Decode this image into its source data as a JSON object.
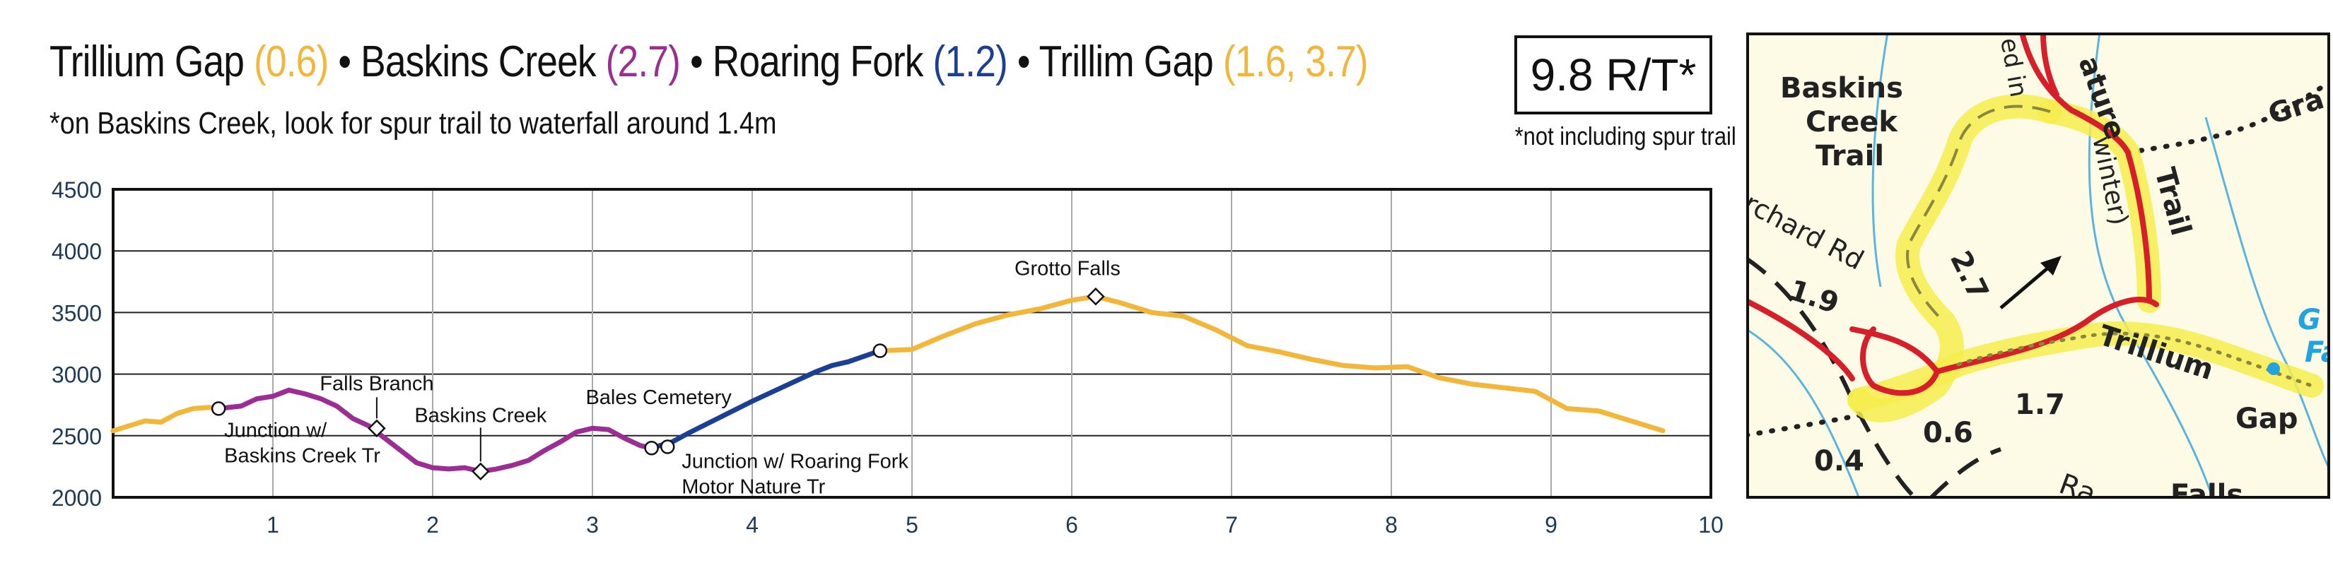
{
  "header": {
    "segments": [
      {
        "name": "Trillium Gap",
        "miles": "(0.6)",
        "color": "#f2b63a"
      },
      {
        "name": "Baskins Creek",
        "miles": "(2.7)",
        "color": "#9b2d93"
      },
      {
        "name": "Roaring Fork",
        "miles": "(1.2)",
        "color": "#1c3f94"
      },
      {
        "name": "Trillim Gap",
        "miles": "(1.6, 3.7)",
        "color": "#f2b63a"
      }
    ],
    "separator": "•",
    "subtitle": "*on Baskins Creek, look for spur trail to waterfall around 1.4m",
    "round_trip": "9.8 R/T*",
    "round_trip_note": "*not including spur trail"
  },
  "chart_data": {
    "type": "line",
    "xlim": [
      0,
      10
    ],
    "ylim": [
      2000,
      4500
    ],
    "x_ticks": [
      1,
      2,
      3,
      4,
      5,
      6,
      7,
      8,
      9,
      10
    ],
    "y_ticks": [
      2000,
      2500,
      3000,
      3500,
      4000,
      4500
    ],
    "grid": true,
    "series": [
      {
        "color": "#f2b63a",
        "x": [
          0,
          0.1,
          0.2,
          0.3,
          0.4,
          0.5,
          0.6,
          0.66
        ],
        "y": [
          2540,
          2580,
          2620,
          2610,
          2680,
          2720,
          2730,
          2720
        ]
      },
      {
        "color": "#9b2d93",
        "x": [
          0.66,
          0.8,
          0.9,
          1.0,
          1.1,
          1.2,
          1.3,
          1.4,
          1.5,
          1.6,
          1.7,
          1.8,
          1.9,
          2.0,
          2.1,
          2.2,
          2.3,
          2.4,
          2.5,
          2.6,
          2.7,
          2.8,
          2.9,
          3.0,
          3.1,
          3.2,
          3.3,
          3.37
        ],
        "y": [
          2720,
          2740,
          2800,
          2820,
          2870,
          2840,
          2800,
          2740,
          2640,
          2580,
          2480,
          2380,
          2280,
          2240,
          2230,
          2240,
          2210,
          2230,
          2260,
          2300,
          2380,
          2450,
          2530,
          2560,
          2550,
          2480,
          2420,
          2400
        ]
      },
      {
        "color": "#1c3f94",
        "x": [
          3.37,
          3.5,
          3.6,
          3.8,
          4.0,
          4.2,
          4.4,
          4.5,
          4.6,
          4.8
        ],
        "y": [
          2400,
          2450,
          2520,
          2650,
          2780,
          2900,
          3020,
          3070,
          3100,
          3190
        ]
      },
      {
        "color": "#f2b63a",
        "x": [
          4.8,
          5.0,
          5.2,
          5.4,
          5.6,
          5.8,
          6.0,
          6.15,
          6.3,
          6.5,
          6.7,
          6.9,
          7.1,
          7.3,
          7.5,
          7.7,
          7.9,
          8.1,
          8.3,
          8.5,
          8.7,
          8.9,
          9.1,
          9.3,
          9.5,
          9.7
        ],
        "y": [
          3190,
          3200,
          3310,
          3410,
          3480,
          3530,
          3600,
          3630,
          3580,
          3500,
          3470,
          3360,
          3230,
          3180,
          3120,
          3070,
          3050,
          3060,
          2970,
          2920,
          2890,
          2860,
          2720,
          2700,
          2620,
          2540
        ]
      }
    ],
    "annotations": [
      {
        "text": "Junction w/ Baskins Creek Tr",
        "lines": [
          "Junction w/",
          "Baskins Creek Tr"
        ],
        "x": 0.66,
        "y": 2720,
        "marker": "circle"
      },
      {
        "text": "Falls Branch",
        "lines": [
          "Falls Branch"
        ],
        "x": 1.65,
        "y": 2560,
        "marker": "diamond"
      },
      {
        "text": "Baskins Creek",
        "lines": [
          "Baskins Creek"
        ],
        "x": 2.3,
        "y": 2210,
        "marker": "diamond"
      },
      {
        "text": "Bales Cemetery",
        "lines": [
          "Bales Cemetery"
        ],
        "x": 3.37,
        "y": 2400,
        "marker": "circle"
      },
      {
        "text": "Junction w/ Roaring Fork Motor Nature Tr",
        "lines": [
          "Junction w/ Roaring Fork",
          "Motor Nature Tr"
        ],
        "x": 3.47,
        "y": 2410,
        "marker": "circle"
      },
      {
        "text": "Grotto Falls",
        "lines": [
          "Grotto Falls"
        ],
        "x": 6.15,
        "y": 3630,
        "marker": "diamond"
      },
      {
        "text": "",
        "lines": [],
        "x": 4.8,
        "y": 3190,
        "marker": "circle"
      }
    ]
  },
  "map": {
    "labels": [
      {
        "text": "Baskins",
        "kind": "trail-name"
      },
      {
        "text": "Creek",
        "kind": "trail-name"
      },
      {
        "text": "Trail",
        "kind": "trail-name"
      },
      {
        "text": "rchard Rd",
        "kind": "road"
      },
      {
        "text": "ed in",
        "kind": "road"
      },
      {
        "text": "ature",
        "kind": "trail-name"
      },
      {
        "text": "winter)",
        "kind": "road"
      },
      {
        "text": "Trail",
        "kind": "trail-name"
      },
      {
        "text": "Trillium",
        "kind": "trail-name"
      },
      {
        "text": "Gap",
        "kind": "trail-name"
      },
      {
        "text": "Gra",
        "kind": "trail-name"
      },
      {
        "text": "G",
        "kind": "water"
      },
      {
        "text": "Fa",
        "kind": "water"
      },
      {
        "text": "Ra",
        "kind": "road"
      },
      {
        "text": "Falls",
        "kind": "trail-name"
      }
    ],
    "distances": [
      "1.9",
      "2.7",
      "0.4",
      "0.6",
      "1.7"
    ]
  }
}
